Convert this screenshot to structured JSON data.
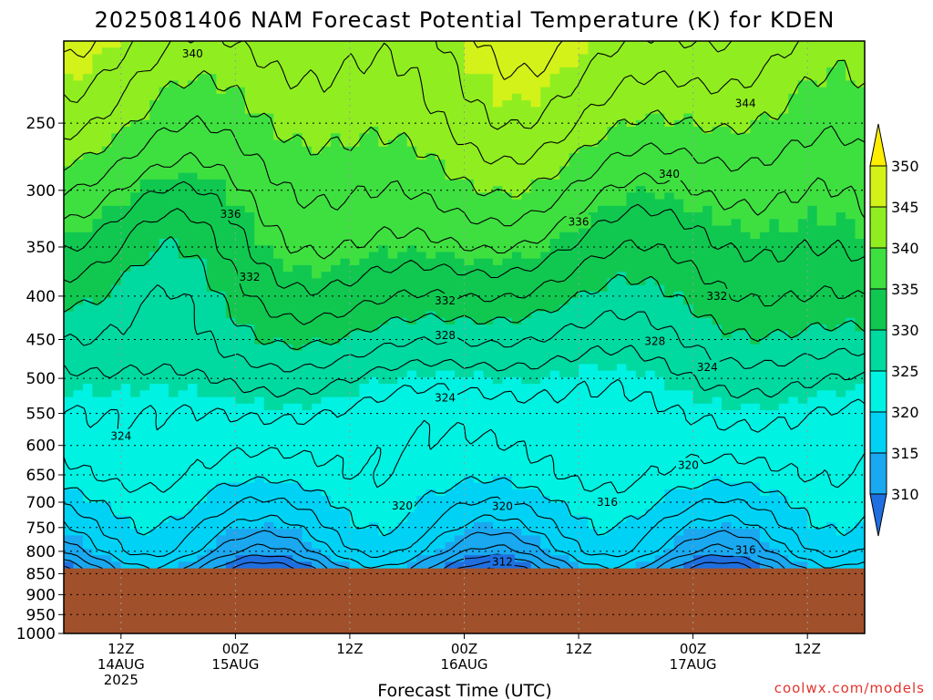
{
  "title": "2025081406 NAM Forecast Potential Temperature (K) for KDEN",
  "watermark": "coolwx.com/models",
  "colors": {
    "ground": "#a0502a",
    "fills": [
      "#1f6fe0",
      "#1aa8f0",
      "#00d2f5",
      "#00f2e2",
      "#00d9a0",
      "#10c850",
      "#3ee040",
      "#90ee20",
      "#d2f21a",
      "#f5f51a",
      "#ffee00"
    ]
  },
  "chart_data": {
    "type": "heatmap",
    "title": "2025081406 NAM Forecast Potential Temperature (K) for KDEN",
    "xlabel": "Forecast Time (UTC)",
    "ylabel": "",
    "y_log_pressure": true,
    "ylim_hpa": [
      1000,
      200
    ],
    "y_ticks": [
      250,
      300,
      350,
      400,
      450,
      500,
      550,
      600,
      650,
      700,
      750,
      800,
      850,
      900,
      950,
      1000
    ],
    "x_ticks": [
      {
        "hour": 6,
        "lines": [
          "12Z",
          "14AUG",
          "2025"
        ]
      },
      {
        "hour": 18,
        "lines": [
          "00Z",
          "15AUG"
        ]
      },
      {
        "hour": 30,
        "lines": [
          "12Z"
        ]
      },
      {
        "hour": 42,
        "lines": [
          "00Z",
          "16AUG"
        ]
      },
      {
        "hour": 54,
        "lines": [
          "12Z"
        ]
      },
      {
        "hour": 66,
        "lines": [
          "00Z",
          "17AUG"
        ]
      },
      {
        "hour": 78,
        "lines": [
          "12Z"
        ]
      }
    ],
    "x_range_hours": [
      0,
      84
    ],
    "surface_pressure_hpa": 838,
    "grid": true,
    "colorbar": {
      "levels": [
        310,
        315,
        320,
        325,
        330,
        335,
        340,
        345,
        350
      ],
      "labels": [
        "310",
        "315",
        "320",
        "325",
        "330",
        "335",
        "340",
        "345",
        "350"
      ],
      "extend": "both"
    },
    "profile_pressures": [
      838,
      800,
      750,
      700,
      650,
      600,
      550,
      500,
      450,
      400,
      350,
      300,
      250,
      200
    ],
    "profile_base_theta": [
      311,
      315,
      317.5,
      319.5,
      321.5,
      322.5,
      323.5,
      325.5,
      328.5,
      331.5,
      334.5,
      337.5,
      341,
      344
    ],
    "contour_labels": [
      {
        "hour": 13.5,
        "p": 207,
        "value": "340"
      },
      {
        "hour": 71.5,
        "p": 237,
        "value": "344"
      },
      {
        "hour": 63.5,
        "p": 287,
        "value": "340"
      },
      {
        "hour": 17.5,
        "p": 320,
        "value": "336"
      },
      {
        "hour": 54,
        "p": 327,
        "value": "336"
      },
      {
        "hour": 19.5,
        "p": 380,
        "value": "332"
      },
      {
        "hour": 40,
        "p": 405,
        "value": "332"
      },
      {
        "hour": 68.5,
        "p": 400,
        "value": "332"
      },
      {
        "hour": 40,
        "p": 445,
        "value": "328"
      },
      {
        "hour": 62,
        "p": 452,
        "value": "328"
      },
      {
        "hour": 67.5,
        "p": 485,
        "value": "324"
      },
      {
        "hour": 40,
        "p": 527,
        "value": "324"
      },
      {
        "hour": 6,
        "p": 585,
        "value": "324"
      },
      {
        "hour": 65.5,
        "p": 633,
        "value": "320"
      },
      {
        "hour": 35.5,
        "p": 707,
        "value": "320"
      },
      {
        "hour": 46,
        "p": 708,
        "value": "320"
      },
      {
        "hour": 57,
        "p": 700,
        "value": "316"
      },
      {
        "hour": 71.5,
        "p": 797,
        "value": "316"
      },
      {
        "hour": 46,
        "p": 823,
        "value": "312"
      }
    ]
  }
}
